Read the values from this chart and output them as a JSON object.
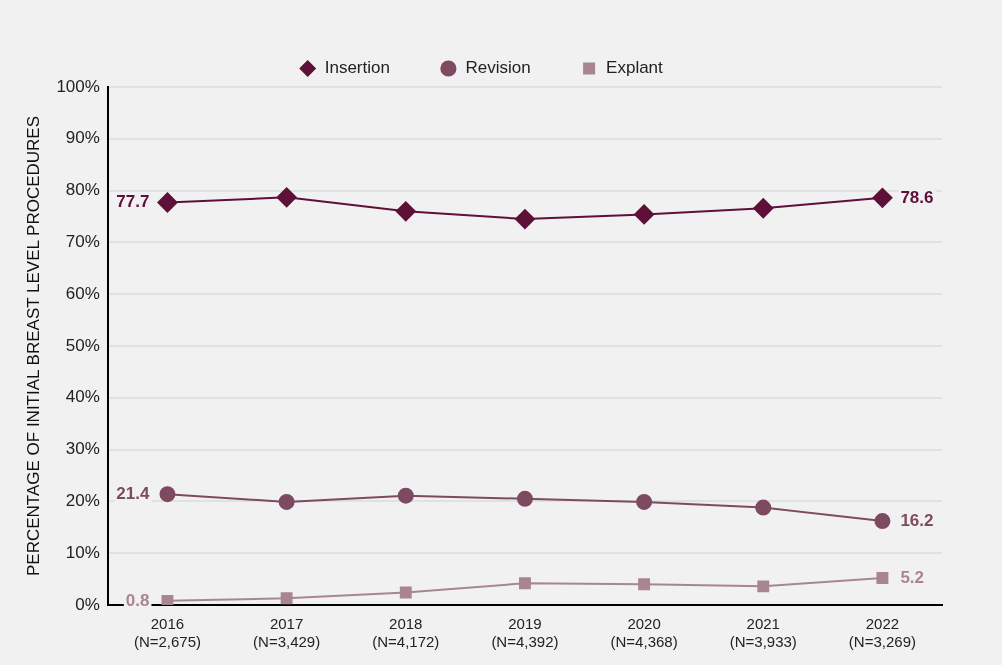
{
  "chart_data": {
    "type": "line",
    "ylabel": "PERCENTAGE OF INITIAL BREAST LEVEL PROCEDURES",
    "categories": [
      "2016\n(N=2,675)",
      "2017\n(N=3,429)",
      "2018\n(N=4,172)",
      "2019\n(N=4,392)",
      "2020\n(N=4,368)",
      "2021\n(N=3,933)",
      "2022\n(N=3,269)"
    ],
    "series": [
      {
        "name": "Insertion",
        "color": "#5e1038",
        "marker": "diamond",
        "values": [
          77.7,
          78.7,
          76.0,
          74.5,
          75.4,
          76.6,
          78.6
        ],
        "value_labels": [
          "77.7",
          null,
          null,
          null,
          null,
          null,
          "78.6"
        ]
      },
      {
        "name": "Revision",
        "color": "#7e4a60",
        "marker": "circle",
        "values": [
          21.4,
          19.9,
          21.1,
          20.5,
          19.9,
          18.8,
          16.2
        ],
        "value_labels": [
          "21.4",
          null,
          null,
          null,
          null,
          null,
          "16.2"
        ]
      },
      {
        "name": "Explant",
        "color": "#a98590",
        "marker": "square",
        "values": [
          0.8,
          1.3,
          2.4,
          4.2,
          4.0,
          3.6,
          5.2
        ],
        "value_labels": [
          "0.8",
          null,
          null,
          null,
          null,
          null,
          "5.2"
        ]
      }
    ],
    "ylim": [
      0,
      100
    ],
    "yticks": [
      {
        "value": 0,
        "label": "0%"
      },
      {
        "value": 10,
        "label": "10%"
      },
      {
        "value": 20,
        "label": "20%"
      },
      {
        "value": 30,
        "label": "30%"
      },
      {
        "value": 40,
        "label": "40%"
      },
      {
        "value": 50,
        "label": "50%"
      },
      {
        "value": 60,
        "label": "60%"
      },
      {
        "value": 70,
        "label": "70%"
      },
      {
        "value": 80,
        "label": "80%"
      },
      {
        "value": 90,
        "label": "90%"
      },
      {
        "value": 100,
        "label": "100%"
      }
    ],
    "grid": "y",
    "legend": "top",
    "line_style": "solid"
  }
}
